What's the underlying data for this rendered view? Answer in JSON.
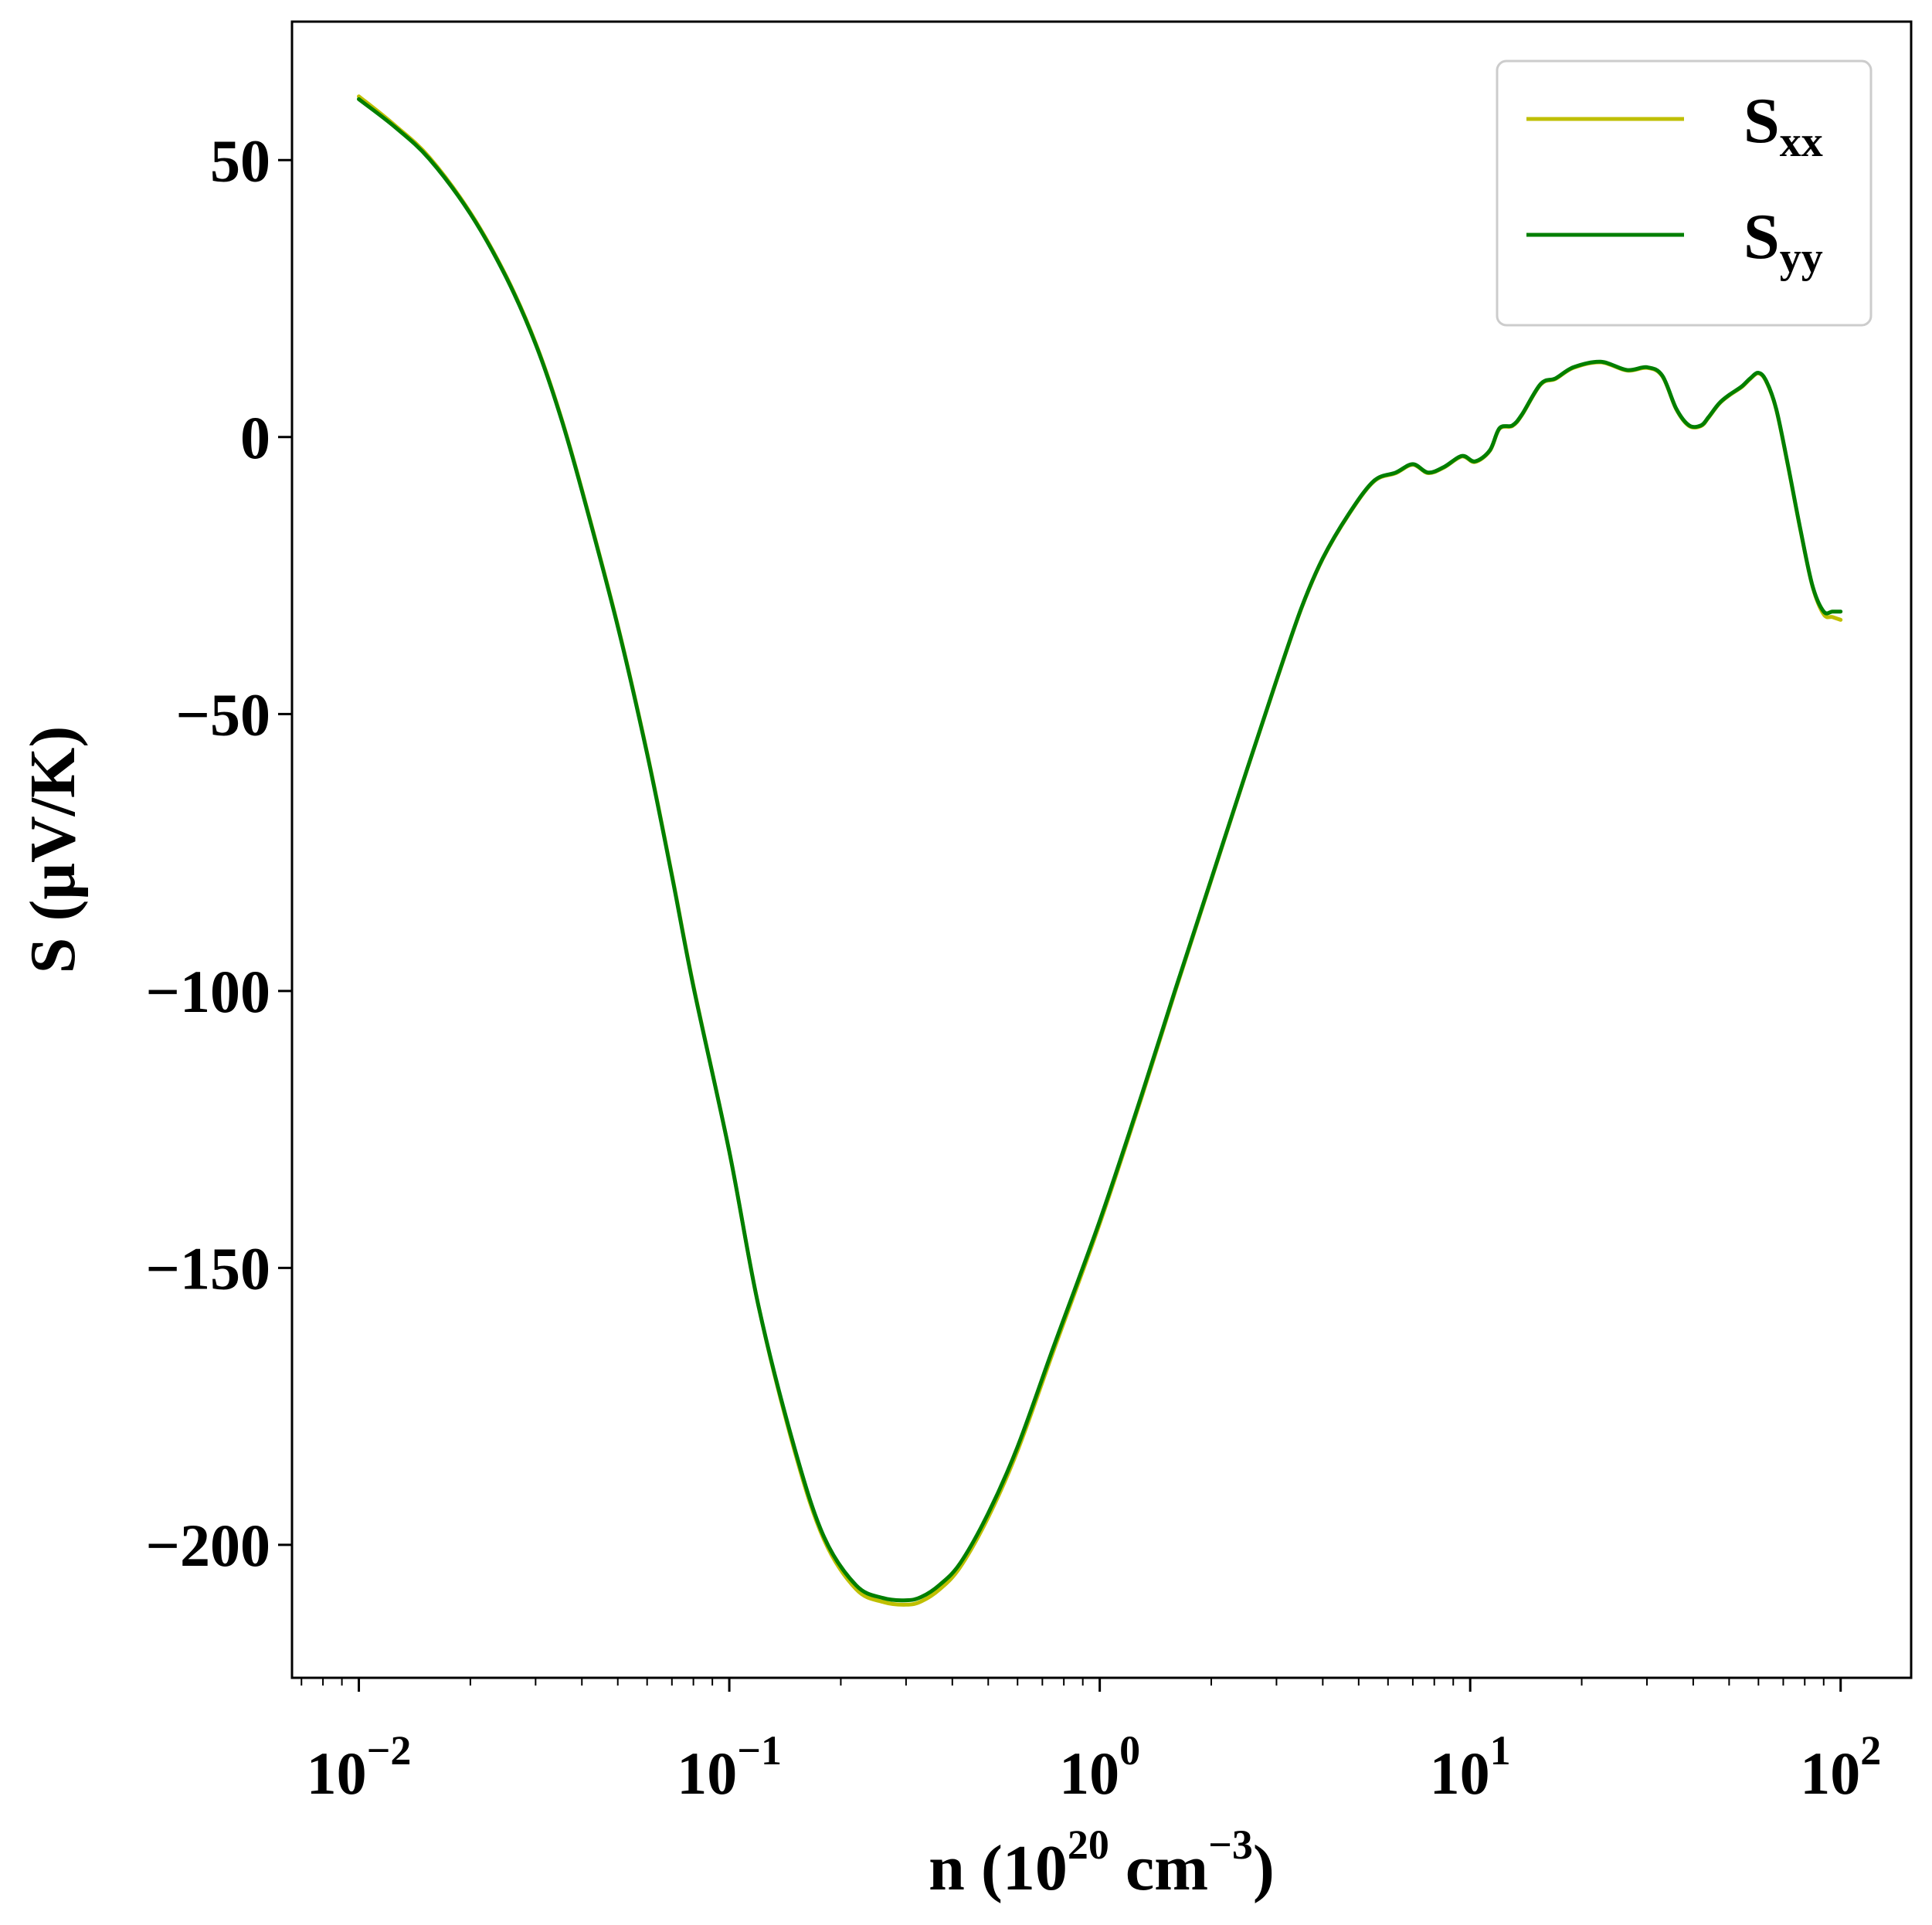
{
  "chart_data": {
    "type": "line",
    "xlabel": {
      "base": "n (10",
      "exp1": "20",
      "mid": " cm",
      "exp2": "−3",
      "end": ")"
    },
    "ylabel": "S (μV/K)",
    "xscale": "log",
    "xlim": [
      0.0066,
      155
    ],
    "ylim": [
      -224,
      75
    ],
    "xticks": [
      {
        "value": 0.01,
        "base": "10",
        "exp": "−2"
      },
      {
        "value": 0.1,
        "base": "10",
        "exp": "−1"
      },
      {
        "value": 1,
        "base": "10",
        "exp": "0"
      },
      {
        "value": 10,
        "base": "10",
        "exp": "1"
      },
      {
        "value": 100,
        "base": "10",
        "exp": "2"
      }
    ],
    "yticks": [
      {
        "value": 50,
        "label": "50"
      },
      {
        "value": 0,
        "label": "0"
      },
      {
        "value": -50,
        "label": "−50"
      },
      {
        "value": -100,
        "label": "−100"
      },
      {
        "value": -150,
        "label": "−150"
      },
      {
        "value": -200,
        "label": "−200"
      }
    ],
    "grid": false,
    "legend_position": "top-right",
    "series": [
      {
        "name": "S",
        "subscript": "xx",
        "color": "#bfbf00",
        "x": [
          0.01,
          0.0125,
          0.0155,
          0.02,
          0.025,
          0.03,
          0.035,
          0.04,
          0.05,
          0.06,
          0.07,
          0.08,
          0.1,
          0.12,
          0.15,
          0.18,
          0.22,
          0.26,
          0.3,
          0.33,
          0.37,
          0.42,
          0.5,
          0.6,
          0.75,
          1.0,
          1.3,
          1.6,
          2.0,
          2.5,
          3.0,
          3.5,
          4.0,
          4.7,
          5.5,
          6.3,
          7.0,
          7.7,
          8.5,
          9.5,
          10.3,
          11.3,
          12.0,
          13.0,
          13.8,
          15.5,
          17.0,
          19.0,
          22.5,
          26.5,
          30.0,
          33.0,
          36.0,
          39.0,
          42.0,
          44.0,
          47.0,
          50.0,
          54.0,
          57.0,
          60.0,
          63.0,
          67.0,
          72.0,
          78.0,
          84.0,
          90.0,
          95.0,
          100.0
        ],
        "y": [
          61.5,
          56.3,
          50.5,
          40.5,
          29.0,
          17.0,
          4.0,
          -9.5,
          -34.0,
          -57.0,
          -79.0,
          -99.0,
          -129.0,
          -157.0,
          -183.0,
          -199.0,
          -208.0,
          -210.3,
          -210.8,
          -210.2,
          -208.0,
          -204.0,
          -195.0,
          -183.0,
          -165.0,
          -142.0,
          -119.0,
          -100.0,
          -80.0,
          -60.0,
          -44.0,
          -31.0,
          -22.0,
          -14.0,
          -8.0,
          -6.5,
          -5.0,
          -6.5,
          -5.5,
          -3.5,
          -4.5,
          -2.5,
          1.5,
          2.0,
          4.0,
          9.5,
          10.5,
          12.5,
          13.5,
          12.0,
          12.5,
          11.0,
          5.0,
          2.0,
          2.0,
          3.5,
          6.0,
          7.5,
          9.0,
          10.5,
          11.5,
          10.0,
          5.0,
          -5.0,
          -17.0,
          -27.0,
          -32.0,
          -32.5,
          -33.0
        ]
      },
      {
        "name": "S",
        "subscript": "yy",
        "color": "#007f00",
        "x": [
          0.01,
          0.0125,
          0.0155,
          0.02,
          0.025,
          0.03,
          0.035,
          0.04,
          0.05,
          0.06,
          0.07,
          0.08,
          0.1,
          0.12,
          0.15,
          0.18,
          0.22,
          0.26,
          0.3,
          0.33,
          0.37,
          0.42,
          0.5,
          0.6,
          0.75,
          1.0,
          1.3,
          1.6,
          2.0,
          2.5,
          3.0,
          3.5,
          4.0,
          4.7,
          5.5,
          6.3,
          7.0,
          7.7,
          8.5,
          9.5,
          10.3,
          11.3,
          12.0,
          13.0,
          13.8,
          15.5,
          17.0,
          19.0,
          22.5,
          26.5,
          30.0,
          33.0,
          36.0,
          39.0,
          42.0,
          44.0,
          47.0,
          50.0,
          54.0,
          57.0,
          60.0,
          63.0,
          67.0,
          72.0,
          78.0,
          84.0,
          90.0,
          95.0,
          100.0
        ],
        "y": [
          61.0,
          56.0,
          50.2,
          40.3,
          28.8,
          16.8,
          3.8,
          -9.7,
          -34.2,
          -57.2,
          -79.2,
          -99.2,
          -129.0,
          -157.0,
          -182.5,
          -198.5,
          -207.3,
          -209.6,
          -210.0,
          -209.4,
          -207.2,
          -203.3,
          -194.3,
          -182.3,
          -164.3,
          -141.5,
          -118.6,
          -99.7,
          -79.8,
          -59.9,
          -43.9,
          -30.9,
          -21.9,
          -13.9,
          -7.9,
          -6.4,
          -4.9,
          -6.4,
          -5.4,
          -3.4,
          -4.4,
          -2.4,
          1.6,
          2.1,
          4.1,
          9.6,
          10.6,
          12.6,
          13.6,
          12.1,
          12.6,
          11.1,
          5.1,
          2.1,
          2.1,
          3.6,
          6.1,
          7.6,
          9.1,
          10.6,
          11.6,
          10.1,
          5.1,
          -4.9,
          -16.9,
          -26.9,
          -31.5,
          -31.5,
          -31.5
        ]
      }
    ]
  }
}
